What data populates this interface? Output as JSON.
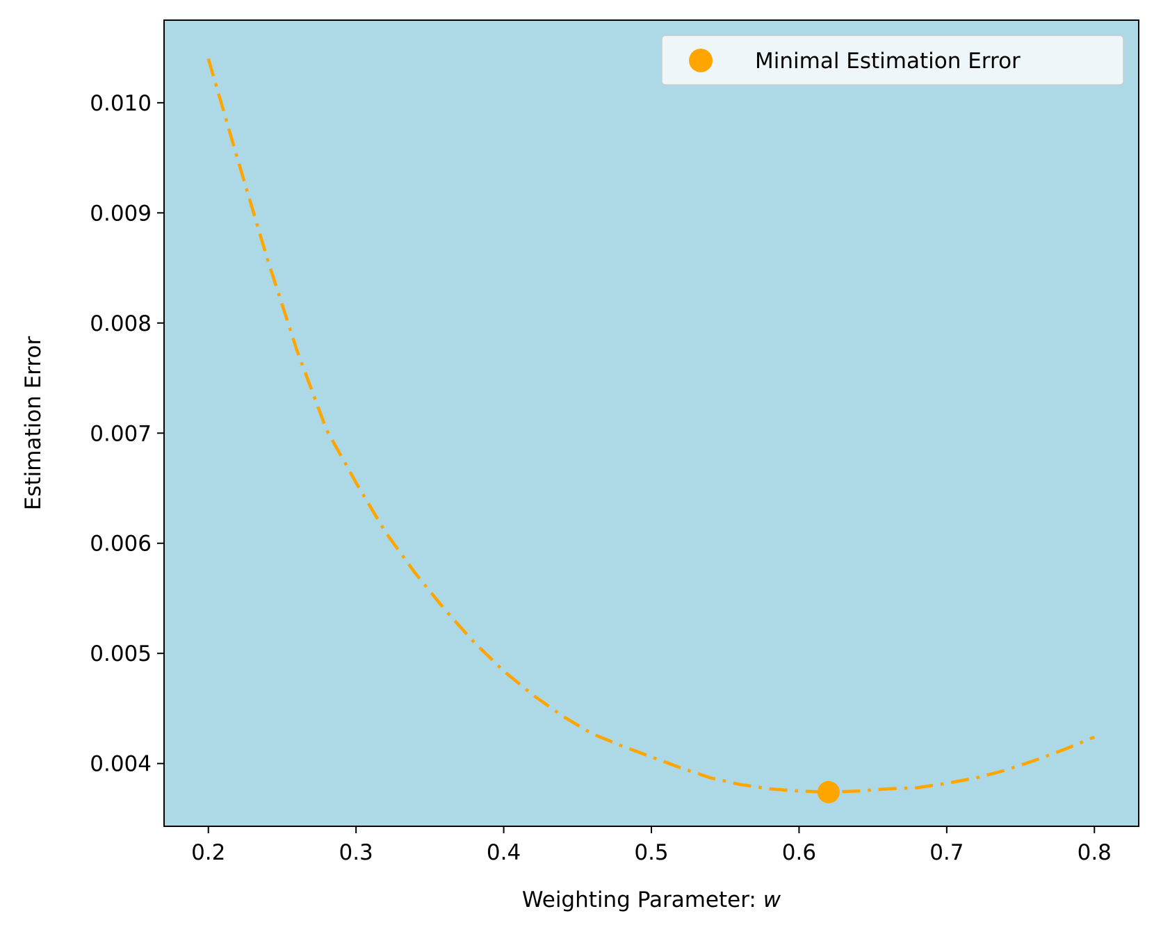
{
  "chart_data": {
    "type": "line",
    "title": "",
    "xlabel": "Weighting Parameter: ",
    "xlabel_var": "w",
    "ylabel": "Estimation Error",
    "xlim": [
      0.17,
      0.83
    ],
    "ylim": [
      0.00343,
      0.01075
    ],
    "xticks": [
      0.2,
      0.3,
      0.4,
      0.5,
      0.6,
      0.7,
      0.8
    ],
    "xtick_labels": [
      "0.2",
      "0.3",
      "0.4",
      "0.5",
      "0.6",
      "0.7",
      "0.8"
    ],
    "yticks": [
      0.004,
      0.005,
      0.006,
      0.007,
      0.008,
      0.009,
      0.01
    ],
    "ytick_labels": [
      "0.004",
      "0.005",
      "0.006",
      "0.007",
      "0.008",
      "0.009",
      "0.010"
    ],
    "grid": false,
    "background": "light-blue",
    "series": [
      {
        "name": "Estimation Error",
        "style": "dash-dot",
        "x": [
          0.2,
          0.22,
          0.24,
          0.26,
          0.28,
          0.3,
          0.32,
          0.34,
          0.36,
          0.38,
          0.4,
          0.42,
          0.44,
          0.46,
          0.48,
          0.5,
          0.52,
          0.54,
          0.56,
          0.58,
          0.6,
          0.62,
          0.64,
          0.66,
          0.68,
          0.7,
          0.72,
          0.74,
          0.76,
          0.78,
          0.8
        ],
        "values": [
          0.0104,
          0.00948,
          0.00858,
          0.00775,
          0.00703,
          0.00655,
          0.0061,
          0.00573,
          0.0054,
          0.0051,
          0.00484,
          0.00462,
          0.00443,
          0.00427,
          0.00416,
          0.00406,
          0.00396,
          0.00387,
          0.00381,
          0.00377,
          0.00375,
          0.00374,
          0.00375,
          0.00377,
          0.00378,
          0.00382,
          0.00387,
          0.00394,
          0.00403,
          0.00413,
          0.00424
        ]
      },
      {
        "name": "Minimal Estimation Error",
        "type": "scatter",
        "x": [
          0.62
        ],
        "values": [
          0.00374
        ]
      }
    ],
    "legend": {
      "position": "top-right",
      "entries": [
        "Minimal Estimation Error"
      ]
    }
  },
  "colors": {
    "line": "#FFA500",
    "marker": "#FFA500",
    "plot_bg": "#ADD8E6",
    "legend_bg": "#EEF6F9",
    "legend_border": "#CCCCCC",
    "axis": "#000000"
  }
}
